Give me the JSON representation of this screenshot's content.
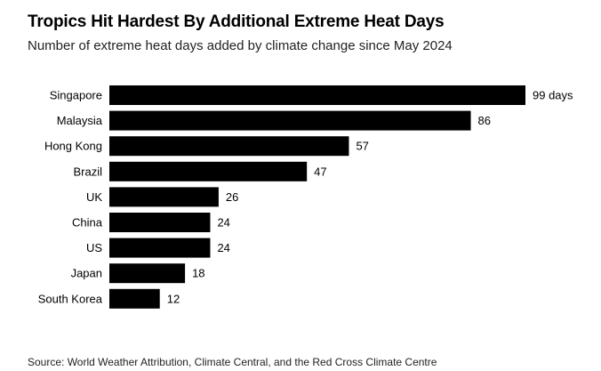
{
  "header": {
    "title": "Tropics Hit Hardest By Additional Extreme Heat Days",
    "subtitle": "Number of extreme heat days added by climate change since May 2024"
  },
  "footer": {
    "source": "Source: World Weather Attribution, Climate Central, and the Red Cross Climate Centre"
  },
  "chart_data": {
    "type": "bar",
    "orientation": "horizontal",
    "title": "Tropics Hit Hardest By Additional Extreme Heat Days",
    "subtitle": "Number of extreme heat days added by climate change since May 2024",
    "categories": [
      "Singapore",
      "Malaysia",
      "Hong Kong",
      "Brazil",
      "UK",
      "China",
      "US",
      "Japan",
      "South Korea"
    ],
    "values": [
      99,
      86,
      57,
      47,
      26,
      24,
      24,
      18,
      12
    ],
    "value_labels": [
      "99 days",
      "86",
      "57",
      "47",
      "26",
      "24",
      "24",
      "18",
      "12"
    ],
    "xlim": [
      0,
      99
    ],
    "grid": false,
    "legend": "none",
    "bar_color": "#000000"
  }
}
